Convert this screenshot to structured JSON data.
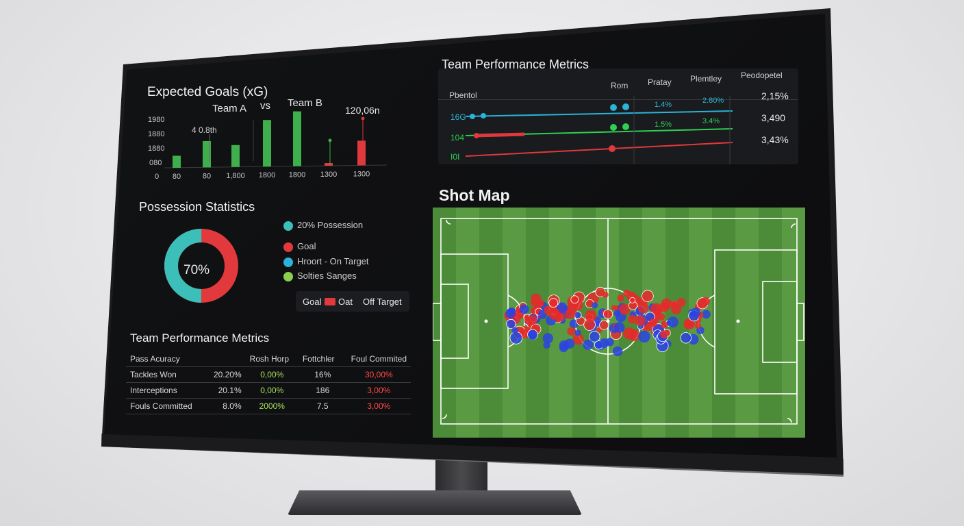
{
  "xg": {
    "title": "Expected Goals (xG)",
    "team_a": "Team A",
    "vs": "vs",
    "team_b": "Team B",
    "annotation_left": "4 0.8th",
    "annotation_right": "120,06n",
    "y_ticks": [
      "1980",
      "1880",
      "1880",
      "080",
      "0"
    ],
    "colors": {
      "team_a": "#3fae4d",
      "team_b": "#e0393d"
    }
  },
  "chart_data": {
    "type": "bar",
    "categories": [
      "80",
      "80",
      "1,800",
      "1800",
      "1800",
      "1300",
      "1300"
    ],
    "series": [
      {
        "values": [
          0.22,
          0.48,
          0.4,
          0.85,
          1.0,
          0.05,
          0.45
        ]
      }
    ],
    "bar_colors": [
      "#3fae4d",
      "#3fae4d",
      "#3fae4d",
      "#3fae4d",
      "#3fae4d",
      "#e0393d",
      "#e0393d"
    ],
    "ylim": [
      0,
      1
    ],
    "title": "Expected Goals (xG)"
  },
  "possession": {
    "title": "Possession Statistics",
    "center_label": "70%",
    "team_a_pct": 50,
    "team_b_pct": 50,
    "colors": {
      "a": "#3bbfb8",
      "b": "#e2393c"
    },
    "legend": [
      {
        "label": "20% Possession",
        "color": "#3bbfb8"
      },
      {
        "label": "Goal",
        "color": "#e2393c"
      },
      {
        "label": "Hroort - On Target",
        "color": "#2bb3d9"
      },
      {
        "label": "Solties Sanges",
        "color": "#8ccf4e"
      }
    ],
    "key": {
      "goal": "Goal",
      "oat": "Oat",
      "off_target": "Off Target"
    }
  },
  "metrics_bottom": {
    "title": "Team Performance Metrics",
    "headers": [
      "Pass Acuracy",
      "Rosh Horp",
      "Fottchler",
      "Foul Commited"
    ],
    "rows": [
      {
        "label": "Tackles Won",
        "c1": "20.20%",
        "c2": "0,00%",
        "c3": "16%",
        "c4": "30,00%"
      },
      {
        "label": "Interceptions",
        "c1": "20.1%",
        "c2": "0,00%",
        "c3": "186",
        "c4": "3,00%"
      },
      {
        "label": "Fouls Committed",
        "c1": "8.0%",
        "c2": "2000%",
        "c3": "7.5",
        "c4": "3,00%"
      }
    ]
  },
  "metrics_top": {
    "title": "Team Performance Metrics",
    "headers": [
      "Pbentol",
      "Rom",
      "Pratay",
      "Plemtley",
      "Peodopetel"
    ],
    "rows": [
      {
        "label": "16G",
        "v1": "1.4%",
        "v2": "2.80%",
        "value": "2,15%",
        "color": "#29b4d8"
      },
      {
        "label": "104",
        "v1": "1.5%",
        "v2": "3.4%",
        "value": "3,490",
        "color": "#2fcf52"
      },
      {
        "label": "I0I",
        "v1": "",
        "v2": "",
        "value": "3,43%",
        "color": "#e0393d"
      }
    ]
  },
  "shot_map": {
    "title": "Shot Map",
    "colors": {
      "pitch_a": "#4c8b37",
      "pitch_b": "#5a9a42",
      "team_a": "#e52a2a",
      "team_b": "#2a43e0"
    }
  }
}
